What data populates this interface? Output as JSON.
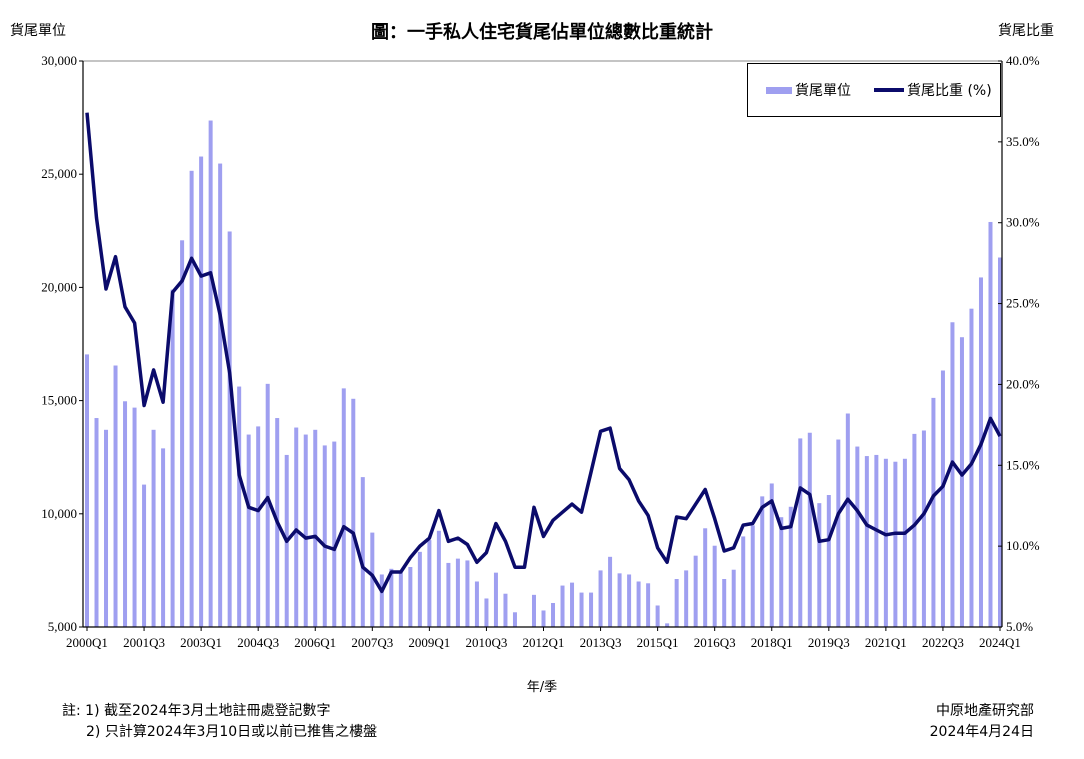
{
  "chart_data": {
    "type": "bar+line",
    "title": "圖：一手私人住宅貨尾佔單位總數比重統計",
    "xlabel": "年/季",
    "ylabel_left": "貨尾單位",
    "ylabel_right": "貨尾比重",
    "ylim_left": [
      5000,
      30000
    ],
    "ylim_right": [
      5.0,
      40.0
    ],
    "y_ticks_left": [
      "5,000",
      "10,000",
      "15,000",
      "20,000",
      "25,000",
      "30,000"
    ],
    "y_ticks_right": [
      "5.0%",
      "10.0%",
      "15.0%",
      "20.0%",
      "25.0%",
      "30.0%",
      "35.0%",
      "40.0%"
    ],
    "x_tick_labels": [
      "2000Q1",
      "2001Q3",
      "2003Q1",
      "2004Q3",
      "2006Q1",
      "2007Q3",
      "2009Q1",
      "2010Q3",
      "2012Q1",
      "2013Q3",
      "2015Q1",
      "2016Q3",
      "2018Q1",
      "2019Q3",
      "2021Q1",
      "2022Q3",
      "2024Q1"
    ],
    "grid": false,
    "legend_position": "top-right",
    "categories": [
      "2000Q1",
      "2000Q2",
      "2000Q3",
      "2000Q4",
      "2001Q1",
      "2001Q2",
      "2001Q3",
      "2001Q4",
      "2002Q1",
      "2002Q2",
      "2002Q3",
      "2002Q4",
      "2003Q1",
      "2003Q2",
      "2003Q3",
      "2003Q4",
      "2004Q1",
      "2004Q2",
      "2004Q3",
      "2004Q4",
      "2005Q1",
      "2005Q2",
      "2005Q3",
      "2005Q4",
      "2006Q1",
      "2006Q2",
      "2006Q3",
      "2006Q4",
      "2007Q1",
      "2007Q2",
      "2007Q3",
      "2007Q4",
      "2008Q1",
      "2008Q2",
      "2008Q3",
      "2008Q4",
      "2009Q1",
      "2009Q2",
      "2009Q3",
      "2009Q4",
      "2010Q1",
      "2010Q2",
      "2010Q3",
      "2010Q4",
      "2011Q1",
      "2011Q2",
      "2011Q3",
      "2011Q4",
      "2012Q1",
      "2012Q2",
      "2012Q3",
      "2012Q4",
      "2013Q1",
      "2013Q2",
      "2013Q3",
      "2013Q4",
      "2014Q1",
      "2014Q2",
      "2014Q3",
      "2014Q4",
      "2015Q1",
      "2015Q2",
      "2015Q3",
      "2015Q4",
      "2016Q1",
      "2016Q2",
      "2016Q3",
      "2016Q4",
      "2017Q1",
      "2017Q2",
      "2017Q3",
      "2017Q4",
      "2018Q1",
      "2018Q2",
      "2018Q3",
      "2018Q4",
      "2019Q1",
      "2019Q2",
      "2019Q3",
      "2019Q4",
      "2020Q1",
      "2020Q2",
      "2020Q3",
      "2020Q4",
      "2021Q1",
      "2021Q2",
      "2021Q3",
      "2021Q4",
      "2022Q1",
      "2022Q2",
      "2022Q3",
      "2022Q4",
      "2023Q1",
      "2023Q2",
      "2023Q3",
      "2023Q4",
      "2024Q1"
    ],
    "series": [
      {
        "name": "貨尾單位",
        "type": "bar",
        "axis": "left",
        "color": "#9f9ff0",
        "values": [
          17040,
          14230,
          13710,
          16550,
          14970,
          14690,
          11290,
          13710,
          12890,
          19900,
          22080,
          25150,
          25780,
          27370,
          25470,
          22470,
          15620,
          13500,
          13860,
          15740,
          14230,
          12600,
          13810,
          13500,
          13710,
          13020,
          13190,
          15540,
          15080,
          11620,
          9170,
          7320,
          7570,
          7400,
          7650,
          8320,
          8840,
          9250,
          7830,
          8020,
          7940,
          7010,
          6260,
          7400,
          6470,
          5650,
          5000,
          6420,
          5730,
          6060,
          6830,
          6960,
          6520,
          6520,
          7500,
          8100,
          7370,
          7320,
          7010,
          6930,
          5950,
          5160,
          7120,
          7500,
          8150,
          9360,
          8590,
          7120,
          7530,
          9000,
          9490,
          10770,
          11340,
          9850,
          10310,
          13330,
          13580,
          10470,
          10830,
          13280,
          14430,
          12970,
          12550,
          12600,
          12430,
          12300,
          12430,
          13530,
          13680,
          15120,
          16330,
          18460,
          17800,
          19060,
          20440,
          22890,
          21320
        ]
      },
      {
        "name": "貨尾比重 (%)",
        "type": "line",
        "axis": "right",
        "color": "#0b0b6b",
        "values": [
          36.8,
          30.3,
          25.9,
          27.9,
          24.8,
          23.8,
          18.7,
          20.9,
          18.9,
          25.7,
          26.4,
          27.8,
          26.7,
          26.9,
          24.3,
          20.7,
          14.4,
          12.4,
          12.2,
          13.0,
          11.5,
          10.3,
          11.0,
          10.5,
          10.6,
          10.0,
          9.8,
          11.2,
          10.8,
          8.7,
          8.2,
          7.2,
          8.4,
          8.4,
          9.3,
          10.0,
          10.5,
          12.2,
          10.3,
          10.5,
          10.1,
          9.0,
          9.6,
          11.4,
          10.3,
          8.7,
          8.7,
          12.4,
          10.6,
          11.6,
          12.1,
          12.6,
          12.1,
          14.6,
          17.1,
          17.3,
          14.8,
          14.1,
          12.8,
          11.9,
          9.9,
          9.0,
          11.8,
          11.7,
          12.6,
          13.5,
          11.7,
          9.7,
          9.9,
          11.3,
          11.4,
          12.4,
          12.8,
          11.1,
          11.2,
          13.6,
          13.2,
          10.3,
          10.4,
          12.0,
          12.9,
          12.2,
          11.3,
          11.0,
          10.7,
          10.8,
          10.8,
          11.3,
          12.0,
          13.1,
          13.7,
          15.2,
          14.4,
          15.1,
          16.3,
          17.9,
          16.8
        ]
      }
    ]
  },
  "notes": {
    "line1": "註: 1) 截至2024年3月土地註冊處登記數字",
    "line2": "2) 只計算2024年3月10日或以前已推售之樓盤"
  },
  "source": {
    "org": "中原地產研究部",
    "date": "2024年4月24日"
  }
}
